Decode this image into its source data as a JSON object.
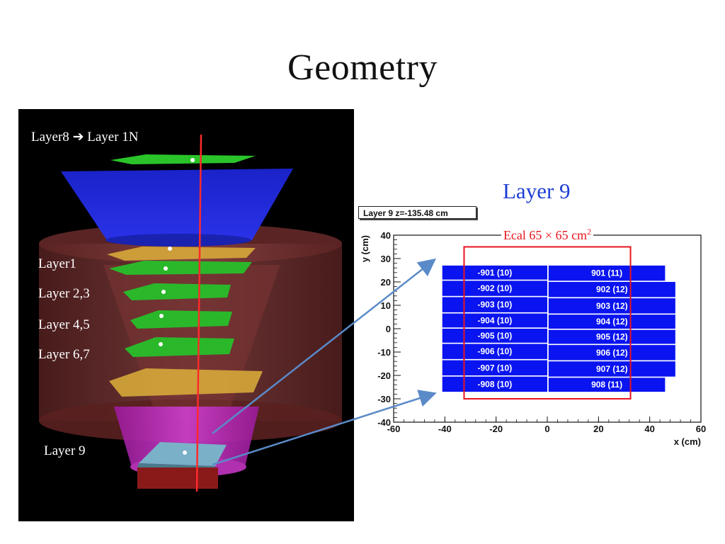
{
  "slide": {
    "title": "Geometry"
  },
  "left_panel": {
    "labels": [
      {
        "key": "top",
        "text_a": "Layer8",
        "text_b": "Layer 1N"
      },
      {
        "key": "l1",
        "text": "Layer1"
      },
      {
        "key": "l23",
        "text": "Layer 2,3"
      },
      {
        "key": "l45",
        "text": "Layer 4,5"
      },
      {
        "key": "l67",
        "text": "Layer 6,7"
      },
      {
        "key": "l9",
        "text": "Layer 9"
      }
    ]
  },
  "right_panel": {
    "heading": "Layer 9",
    "histogram_title": "Layer 9 z=-135.48 cm",
    "ecal_label": "Ecal 65 × 65 cm",
    "ecal_superscript": "2"
  },
  "chart_data": {
    "type": "heatmap",
    "title": "Layer 9 z=-135.48 cm",
    "xlabel": "x (cm)",
    "ylabel": "y (cm)",
    "xlim": [
      -60,
      60
    ],
    "ylim": [
      -40,
      40
    ],
    "x_ticks": [
      -60,
      -40,
      -20,
      0,
      20,
      40,
      60
    ],
    "y_ticks": [
      -40,
      -30,
      -20,
      -10,
      0,
      10,
      20,
      30,
      40
    ],
    "cell_color": "#0a14f0",
    "box_color": "#e8141e",
    "ecal_box": {
      "x": [
        -32.5,
        32.5
      ],
      "y": [
        -30,
        35
      ]
    },
    "cells": [
      {
        "label": "-901 (10)",
        "x": [
          -41,
          0
        ],
        "y": [
          21,
          27
        ]
      },
      {
        "label": "-902 (10)",
        "x": [
          -41,
          0
        ],
        "y": [
          14,
          20.5
        ]
      },
      {
        "label": "-903 (10)",
        "x": [
          -41,
          0
        ],
        "y": [
          7,
          13.5
        ]
      },
      {
        "label": "-904 (10)",
        "x": [
          -41,
          0
        ],
        "y": [
          0.5,
          6.5
        ]
      },
      {
        "label": "-905 (10)",
        "x": [
          -41,
          0
        ],
        "y": [
          -6,
          0
        ]
      },
      {
        "label": "-906 (10)",
        "x": [
          -41,
          0
        ],
        "y": [
          -13,
          -6.5
        ]
      },
      {
        "label": "-907 (10)",
        "x": [
          -41,
          0
        ],
        "y": [
          -20,
          -13.5
        ]
      },
      {
        "label": "-908 (10)",
        "x": [
          -41,
          0
        ],
        "y": [
          -27,
          -20.5
        ]
      },
      {
        "label": "901 (11)",
        "x": [
          0.5,
          46
        ],
        "y": [
          20.5,
          27
        ]
      },
      {
        "label": "902 (12)",
        "x": [
          0.5,
          50
        ],
        "y": [
          13.5,
          20
        ]
      },
      {
        "label": "903 (12)",
        "x": [
          0.5,
          50
        ],
        "y": [
          6.5,
          13
        ]
      },
      {
        "label": "904 (12)",
        "x": [
          0.5,
          50
        ],
        "y": [
          0,
          6
        ]
      },
      {
        "label": "905 (12)",
        "x": [
          0.5,
          50
        ],
        "y": [
          -6.5,
          -0.5
        ]
      },
      {
        "label": "906 (12)",
        "x": [
          0.5,
          50
        ],
        "y": [
          -13.5,
          -7
        ]
      },
      {
        "label": "907 (12)",
        "x": [
          0.5,
          50
        ],
        "y": [
          -20.5,
          -14
        ]
      },
      {
        "label": "908 (11)",
        "x": [
          0.5,
          46
        ],
        "y": [
          -27,
          -21
        ]
      }
    ]
  }
}
